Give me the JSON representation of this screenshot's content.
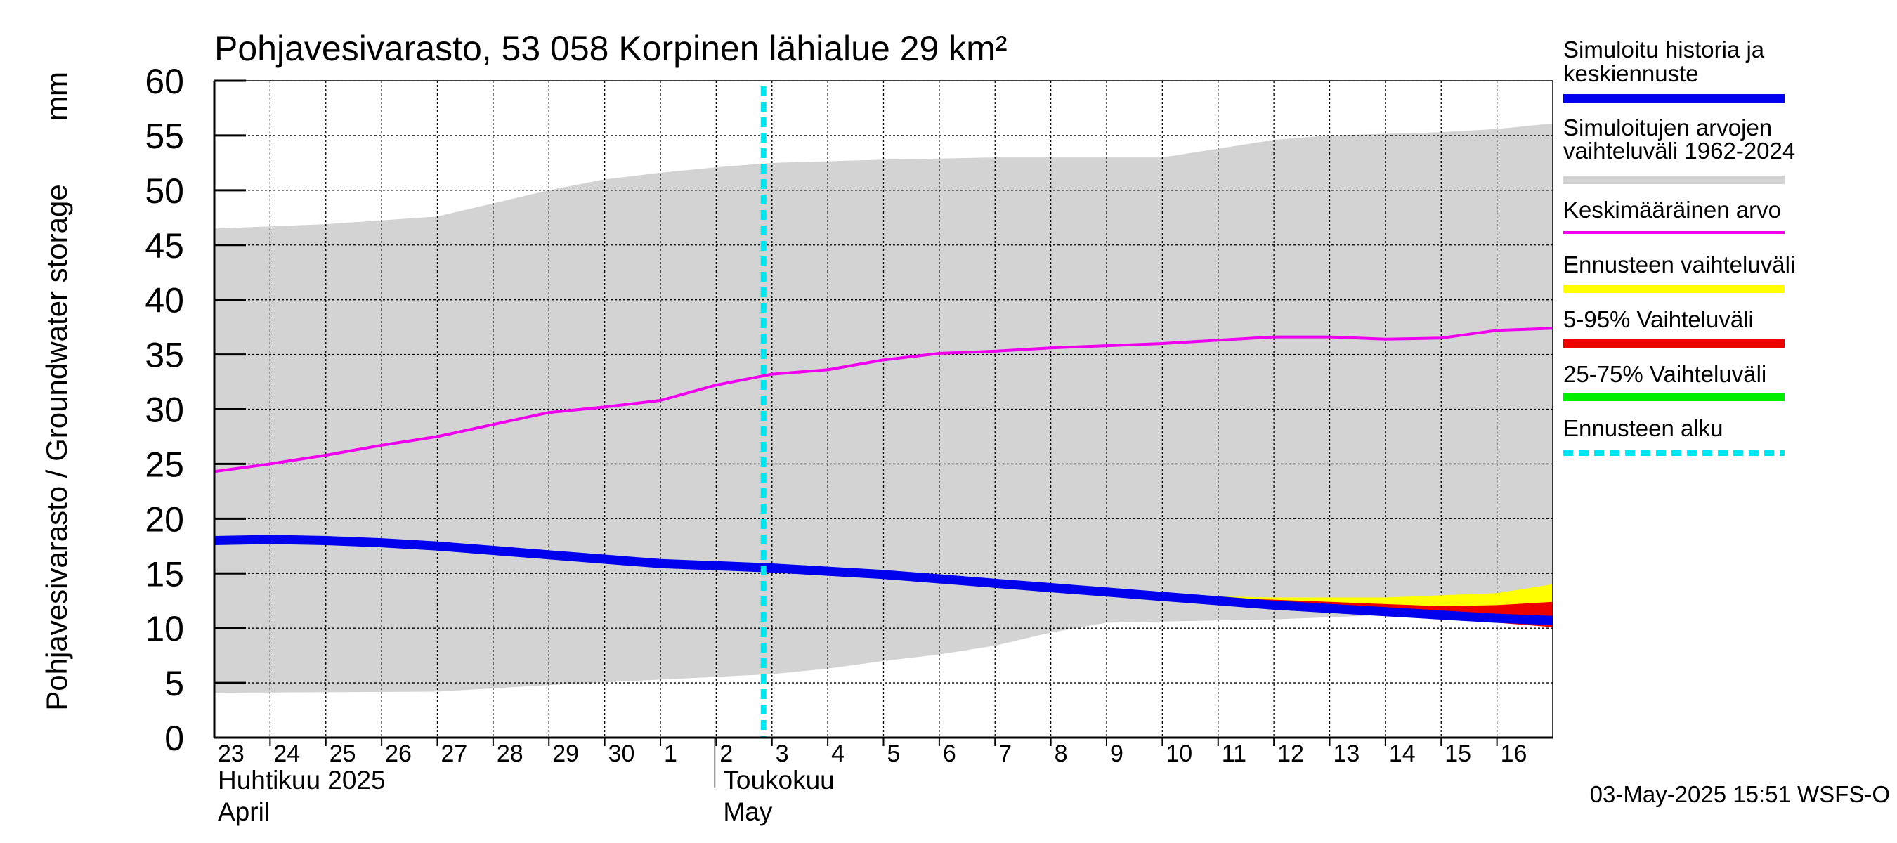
{
  "chart_data": {
    "type": "area",
    "title": "Pohjavesivarasto, 53 058 Korpinen lähialue 29 km²",
    "ylabel": "Pohjavesivarasto / Groundwater storage",
    "yunit": "mm",
    "ylim": [
      0,
      60
    ],
    "yticks": [
      0,
      5,
      10,
      15,
      20,
      25,
      30,
      35,
      40,
      45,
      50,
      55,
      60
    ],
    "grid": true,
    "x_start": "2025-04-23",
    "x_end": "2025-05-17",
    "x_tick_labels": [
      "23",
      "24",
      "25",
      "26",
      "27",
      "28",
      "29",
      "30",
      "1",
      "2",
      "3",
      "4",
      "5",
      "6",
      "7",
      "8",
      "9",
      "10",
      "11",
      "12",
      "13",
      "14",
      "15",
      "16"
    ],
    "month_labels": [
      {
        "fi": "Huhtikuu  2025",
        "en": "April",
        "date": "2025-04-23"
      },
      {
        "fi": "Toukokuu",
        "en": "May",
        "date": "2025-05-02"
      }
    ],
    "forecast_start": "2025-05-03",
    "timestamp": "03-May-2025 15:51 WSFS-O",
    "legend_position": "right",
    "legend": [
      {
        "key": "history",
        "label": "Simuloitu historia ja keskiennuste",
        "lines": [
          "Simuloitu historia ja",
          "keskiennuste"
        ],
        "color": "#0000ee",
        "style": "solid"
      },
      {
        "key": "range",
        "label": "Simuloitujen arvojen vaihteluväli 1962-2024",
        "lines": [
          "Simuloitujen arvojen",
          "vaihteluväli 1962-2024"
        ],
        "color": "#d3d3d3",
        "style": "solid"
      },
      {
        "key": "mean",
        "label": "Keskimääräinen arvo",
        "lines": [
          "Keskimääräinen arvo"
        ],
        "color": "#ee00ee",
        "style": "thin"
      },
      {
        "key": "fc_range",
        "label": "Ennusteen vaihteluväli",
        "lines": [
          "Ennusteen vaihteluväli"
        ],
        "color": "#ffff00",
        "style": "solid"
      },
      {
        "key": "p5_95",
        "label": "5-95% Vaihteluväli",
        "lines": [
          "5-95% Vaihteluväli"
        ],
        "color": "#ee0000",
        "style": "solid"
      },
      {
        "key": "p25_75",
        "label": "25-75% Vaihteluväli",
        "lines": [
          "25-75% Vaihteluväli"
        ],
        "color": "#00ee00",
        "style": "solid"
      },
      {
        "key": "fc_start",
        "label": "Ennusteen alku",
        "lines": [
          "Ennusteen alku"
        ],
        "color": "#00e5ee",
        "style": "dashed"
      }
    ],
    "series": {
      "range_upper": {
        "x": [
          "2025-04-23",
          "2025-04-25",
          "2025-04-27",
          "2025-04-28",
          "2025-04-29",
          "2025-04-30",
          "2025-05-01",
          "2025-05-02",
          "2025-05-03",
          "2025-05-05",
          "2025-05-07",
          "2025-05-09",
          "2025-05-10",
          "2025-05-11",
          "2025-05-12",
          "2025-05-13",
          "2025-05-15",
          "2025-05-16",
          "2025-05-17"
        ],
        "y": [
          46.5,
          46.9,
          47.6,
          48.8,
          50.0,
          51.0,
          51.6,
          52.1,
          52.5,
          52.8,
          53.0,
          53.0,
          53.0,
          53.8,
          54.6,
          55.0,
          55.3,
          55.6,
          56.1
        ]
      },
      "range_lower": {
        "x": [
          "2025-04-23",
          "2025-04-27",
          "2025-04-29",
          "2025-05-01",
          "2025-05-03",
          "2025-05-04",
          "2025-05-05",
          "2025-05-06",
          "2025-05-07",
          "2025-05-08",
          "2025-05-09",
          "2025-05-10",
          "2025-05-12",
          "2025-05-14",
          "2025-05-16",
          "2025-05-17"
        ],
        "y": [
          4.1,
          4.2,
          4.8,
          5.3,
          5.8,
          6.3,
          7.0,
          7.6,
          8.4,
          9.6,
          10.5,
          10.6,
          10.8,
          11.2,
          11.8,
          12.5
        ]
      },
      "mean": {
        "x": [
          "2025-04-23",
          "2025-04-24",
          "2025-04-25",
          "2025-04-26",
          "2025-04-27",
          "2025-04-28",
          "2025-04-29",
          "2025-04-30",
          "2025-05-01",
          "2025-05-02",
          "2025-05-03",
          "2025-05-04",
          "2025-05-05",
          "2025-05-06",
          "2025-05-07",
          "2025-05-08",
          "2025-05-09",
          "2025-05-10",
          "2025-05-11",
          "2025-05-12",
          "2025-05-13",
          "2025-05-14",
          "2025-05-15",
          "2025-05-16",
          "2025-05-17"
        ],
        "y": [
          24.3,
          25.0,
          25.8,
          26.7,
          27.5,
          28.6,
          29.7,
          30.2,
          30.8,
          32.2,
          33.2,
          33.6,
          34.5,
          35.1,
          35.3,
          35.6,
          35.8,
          36.0,
          36.3,
          36.6,
          36.6,
          36.4,
          36.5,
          37.2,
          37.4
        ]
      },
      "history": {
        "x": [
          "2025-04-23",
          "2025-04-24",
          "2025-04-25",
          "2025-04-26",
          "2025-04-27",
          "2025-04-28",
          "2025-04-29",
          "2025-04-30",
          "2025-05-01",
          "2025-05-02",
          "2025-05-03",
          "2025-05-04",
          "2025-05-05",
          "2025-05-06",
          "2025-05-07",
          "2025-05-08",
          "2025-05-09",
          "2025-05-10",
          "2025-05-11",
          "2025-05-12",
          "2025-05-13",
          "2025-05-14",
          "2025-05-15",
          "2025-05-16",
          "2025-05-17"
        ],
        "y": [
          18.0,
          18.1,
          18.0,
          17.8,
          17.5,
          17.1,
          16.7,
          16.3,
          15.9,
          15.7,
          15.5,
          15.2,
          14.9,
          14.5,
          14.1,
          13.7,
          13.3,
          12.9,
          12.5,
          12.1,
          11.8,
          11.5,
          11.2,
          10.9,
          10.7
        ]
      },
      "fc_range_upper": {
        "x": [
          "2025-05-10",
          "2025-05-12",
          "2025-05-14",
          "2025-05-15",
          "2025-05-16",
          "2025-05-17"
        ],
        "y": [
          13.0,
          12.8,
          12.8,
          13.0,
          13.2,
          14.0
        ]
      },
      "fc_range_lower": {
        "x": [
          "2025-05-10",
          "2025-05-12",
          "2025-05-14",
          "2025-05-15",
          "2025-05-16",
          "2025-05-17"
        ],
        "y": [
          12.8,
          11.9,
          11.3,
          10.9,
          10.5,
          10.1
        ]
      },
      "p5_95_upper": {
        "x": [
          "2025-05-10",
          "2025-05-12",
          "2025-05-14",
          "2025-05-15",
          "2025-05-16",
          "2025-05-17"
        ],
        "y": [
          12.9,
          12.6,
          12.2,
          12.0,
          12.1,
          12.4
        ]
      },
      "p5_95_lower": {
        "x": [
          "2025-05-10",
          "2025-05-12",
          "2025-05-14",
          "2025-05-15",
          "2025-05-16",
          "2025-05-17"
        ],
        "y": [
          12.8,
          11.9,
          11.3,
          10.9,
          10.5,
          10.1
        ]
      }
    }
  }
}
